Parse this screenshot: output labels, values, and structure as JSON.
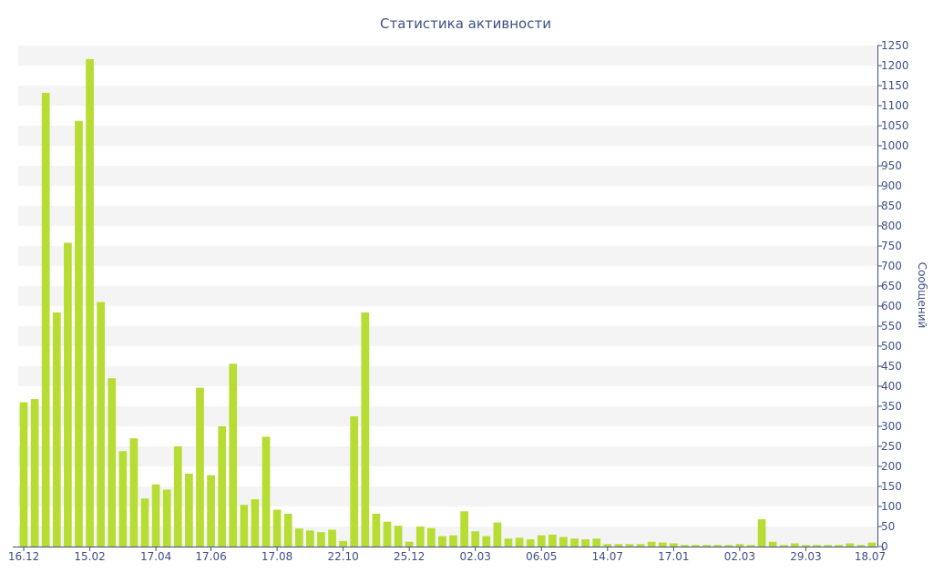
{
  "chart_data": {
    "type": "bar",
    "title": "Статистика активности",
    "ylabel": "Сообщений",
    "xlabel": "",
    "ylim": [
      0,
      1250
    ],
    "y_ticks": [
      0,
      50,
      100,
      150,
      200,
      250,
      300,
      350,
      400,
      450,
      500,
      550,
      600,
      650,
      700,
      750,
      800,
      850,
      900,
      950,
      1000,
      1050,
      1100,
      1150,
      1200,
      1250
    ],
    "y_axis_side": "right",
    "grid": "alternating horizontal bands",
    "x_tick_labels": [
      "16.12",
      "15.02",
      "17.04",
      "17.06",
      "17.08",
      "22.10",
      "25.12",
      "02.03",
      "06.05",
      "14.07",
      "17.01",
      "02.03",
      "29.03",
      "18.07"
    ],
    "x_tick_bar_index": [
      0,
      6,
      12,
      17,
      23,
      29,
      35,
      41,
      47,
      53,
      59,
      65,
      71,
      78
    ],
    "bar_color": "#b7dc34",
    "values": [
      360,
      368,
      1132,
      584,
      758,
      1062,
      1216,
      610,
      420,
      238,
      270,
      120,
      155,
      142,
      250,
      182,
      396,
      178,
      300,
      456,
      104,
      118,
      274,
      92,
      82,
      45,
      40,
      36,
      42,
      14,
      325,
      584,
      82,
      62,
      52,
      12,
      50,
      46,
      26,
      28,
      88,
      38,
      26,
      60,
      20,
      22,
      18,
      28,
      30,
      24,
      20,
      18,
      20,
      6,
      6,
      6,
      6,
      12,
      10,
      8,
      4,
      4,
      4,
      4,
      4,
      6,
      4,
      68,
      12,
      4,
      8,
      4,
      4,
      4,
      4,
      8,
      4,
      10
    ]
  }
}
